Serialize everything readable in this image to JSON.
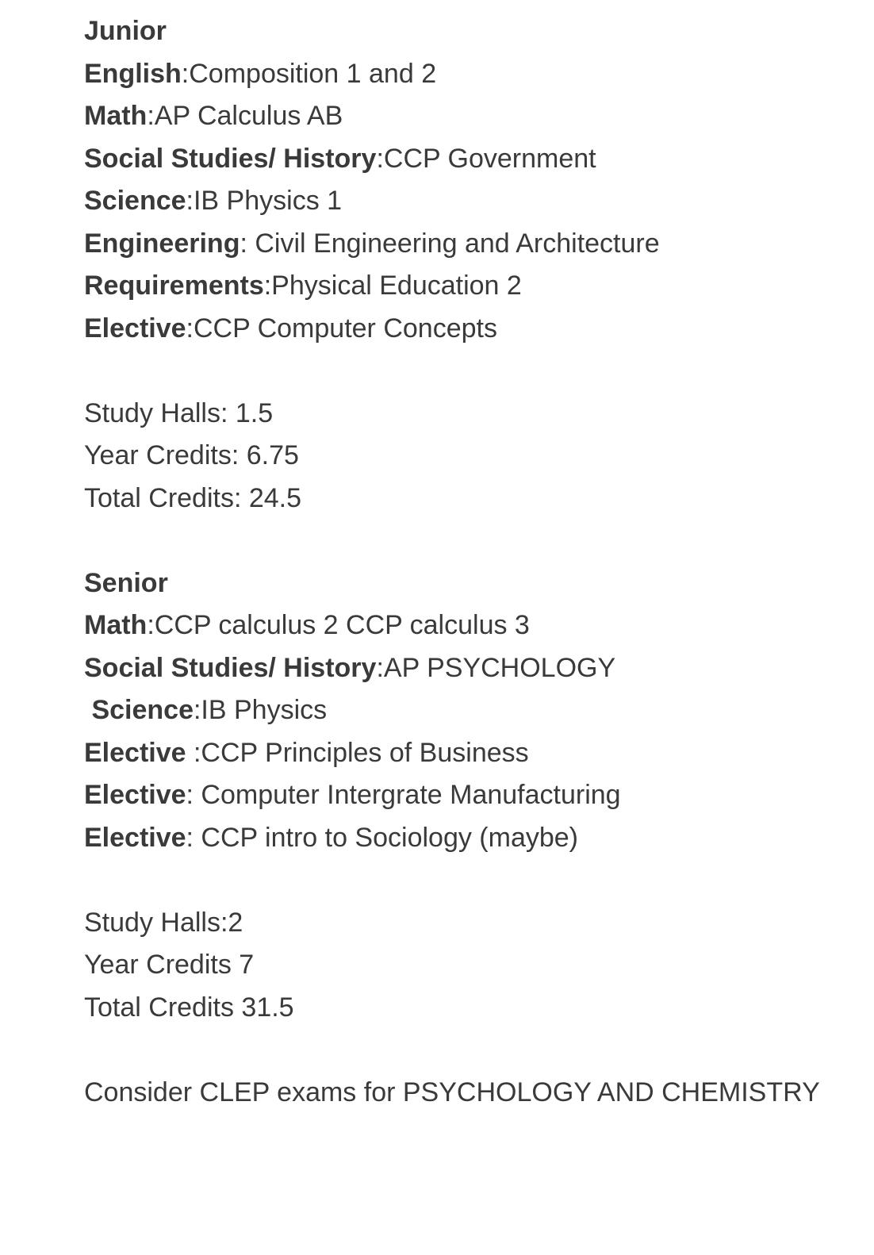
{
  "lines": [
    {
      "label": "Junior",
      "value": ""
    },
    {
      "label": "English",
      "value": ":Composition 1 and 2"
    },
    {
      "label": "Math",
      "value": ":AP Calculus AB"
    },
    {
      "label": "Social Studies/ History",
      "value": ":CCP Government"
    },
    {
      "label": "Science",
      "value": ":IB Physics 1"
    },
    {
      "label": "Engineering",
      "value": ": Civil Engineering and Architecture"
    },
    {
      "label": "Requirements",
      "value": ":Physical Education 2"
    },
    {
      "label": "Elective",
      "value": ":CCP Computer Concepts"
    },
    {
      "label": "",
      "value": ""
    },
    {
      "label": "",
      "value": "Study Halls: 1.5"
    },
    {
      "label": "",
      "value": "Year Credits: 6.75"
    },
    {
      "label": "",
      "value": "Total Credits: 24.5"
    },
    {
      "label": "",
      "value": ""
    },
    {
      "label": "Senior",
      "value": ""
    },
    {
      "label": "Math",
      "value": ":CCP calculus 2 CCP calculus 3"
    },
    {
      "label": "Social Studies/ History",
      "value": ":AP PSYCHOLOGY"
    },
    {
      "label": " Science",
      "value": ":IB Physics"
    },
    {
      "label": "Elective ",
      "value": ":CCP Principles of Business"
    },
    {
      "label": "Elective",
      "value": ": Computer Intergrate Manufacturing"
    },
    {
      "label": "Elective",
      "value": ": CCP intro to Sociology (maybe)"
    },
    {
      "label": "",
      "value": ""
    },
    {
      "label": "",
      "value": "Study Halls:2"
    },
    {
      "label": "",
      "value": "Year Credits 7"
    },
    {
      "label": "",
      "value": "Total Credits 31.5"
    },
    {
      "label": "",
      "value": ""
    },
    {
      "label": "",
      "value": "Consider CLEP exams for PSYCHOLOGY AND CHEMISTRY"
    }
  ]
}
